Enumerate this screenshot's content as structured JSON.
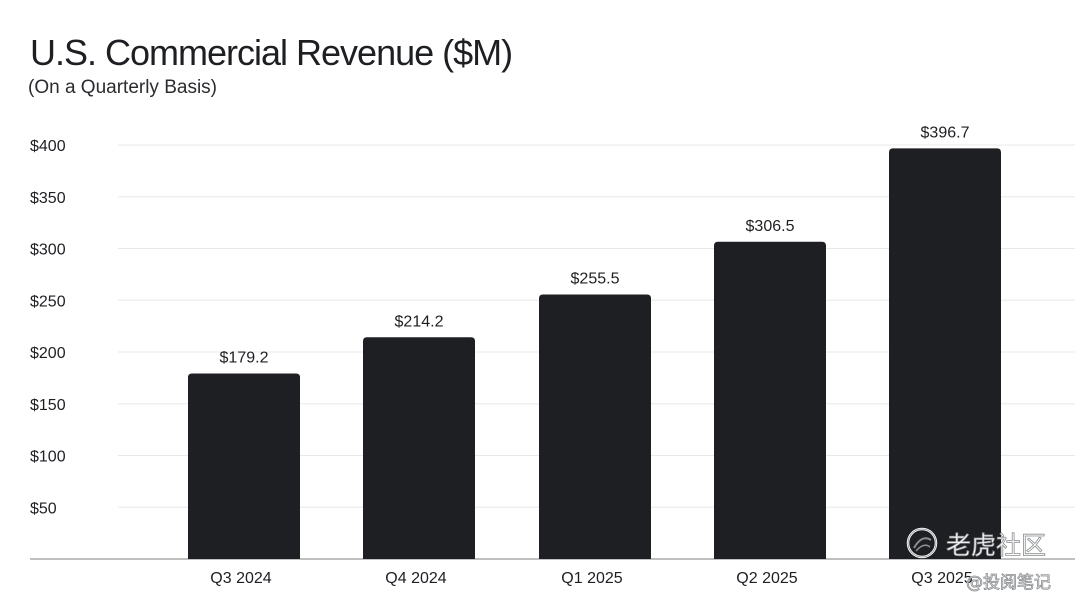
{
  "chart_data": {
    "type": "bar",
    "title": "U.S. Commercial Revenue ($M)",
    "subtitle": "(On a Quarterly Basis)",
    "categories": [
      "Q3 2024",
      "Q4 2024",
      "Q1 2025",
      "Q2 2025",
      "Q3 2025"
    ],
    "values": [
      179.2,
      214.2,
      255.5,
      306.5,
      396.7
    ],
    "data_labels": [
      "$179.2",
      "$214.2",
      "$255.5",
      "$306.5",
      "$396.7"
    ],
    "yticks": [
      50,
      100,
      150,
      200,
      250,
      300,
      350,
      400
    ],
    "ytick_labels": [
      "$50",
      "$100",
      "$150",
      "$200",
      "$250",
      "$300",
      "$350",
      "$400"
    ],
    "ylim": [
      0,
      400
    ],
    "xlabel": "",
    "ylabel": "",
    "grid": true,
    "bar_color": "#1d1f22",
    "grid_color": "#e8e8e8",
    "axis_color": "#9a9a9a"
  },
  "watermark": {
    "brand": "老虎社区",
    "handle": "@投阅笔记"
  }
}
